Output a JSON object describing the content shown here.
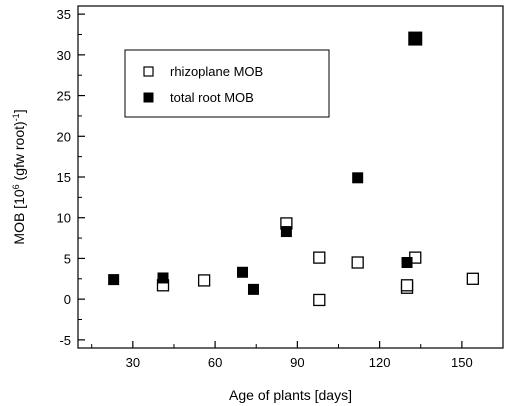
{
  "chart_data": {
    "type": "scatter",
    "xlabel": "Age of plants [days]",
    "ylabel": "MOB [10^6 (gfw root)^-1]",
    "ylabel_parts": {
      "prefix": "MOB [10",
      "exp1": "6",
      "middle": " (gfw root)",
      "exp2": "-1",
      "suffix": "]"
    },
    "xlim": [
      10,
      165
    ],
    "ylim": [
      -6,
      36
    ],
    "xticks": [
      30,
      60,
      90,
      120,
      150
    ],
    "yticks": [
      -5,
      0,
      5,
      10,
      15,
      20,
      25,
      30,
      35
    ],
    "xtick_labels": [
      "30",
      "60",
      "90",
      "120",
      "150"
    ],
    "ytick_labels": [
      "-5",
      "0",
      "5",
      "10",
      "15",
      "20",
      "25",
      "30",
      "35"
    ],
    "legend_placement": "top-left",
    "grid": false,
    "series": [
      {
        "name": "rhizoplane MOB",
        "marker": "open-square",
        "color": "#000000",
        "points": [
          {
            "x": 41,
            "y": 1.7
          },
          {
            "x": 56,
            "y": 2.3
          },
          {
            "x": 86,
            "y": 9.3
          },
          {
            "x": 98,
            "y": 5.1
          },
          {
            "x": 98,
            "y": -0.1
          },
          {
            "x": 112,
            "y": 4.5
          },
          {
            "x": 130,
            "y": 1.4
          },
          {
            "x": 130,
            "y": 1.7
          },
          {
            "x": 133,
            "y": 5.1
          },
          {
            "x": 154,
            "y": 2.5
          }
        ]
      },
      {
        "name": "total root MOB",
        "marker": "filled-square",
        "color": "#000000",
        "points": [
          {
            "x": 23,
            "y": 2.4
          },
          {
            "x": 41,
            "y": 2.6
          },
          {
            "x": 70,
            "y": 3.3
          },
          {
            "x": 74,
            "y": 1.2
          },
          {
            "x": 86,
            "y": 8.3
          },
          {
            "x": 112,
            "y": 14.9
          },
          {
            "x": 130,
            "y": 4.5
          },
          {
            "x": 133,
            "y": 32.0
          }
        ]
      }
    ]
  }
}
